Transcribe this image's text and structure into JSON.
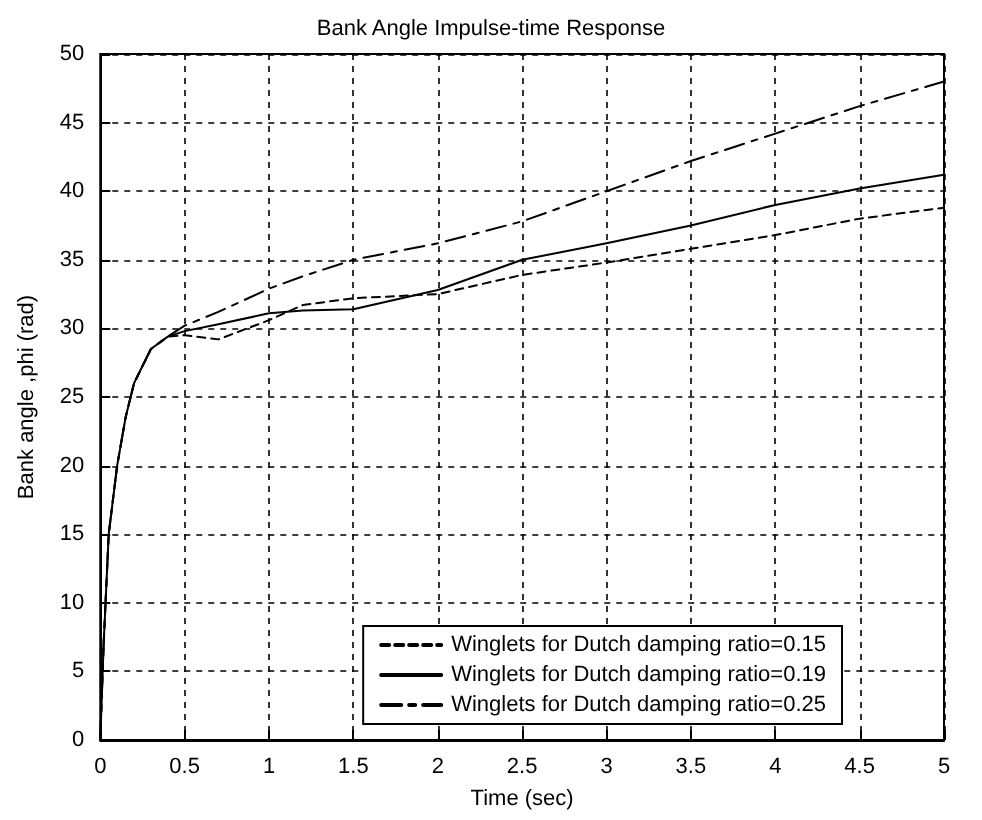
{
  "chart_data": {
    "type": "line",
    "title": "Bank Angle Impulse-time Response",
    "xlabel": "Time (sec)",
    "ylabel": "Bank angle ,phi (rad)",
    "x": [
      0,
      0.02,
      0.05,
      0.1,
      0.15,
      0.2,
      0.3,
      0.4,
      0.5,
      0.7,
      1.0,
      1.2,
      1.5,
      2.0,
      2.5,
      3.0,
      3.5,
      4.0,
      4.5,
      5.0
    ],
    "series": [
      {
        "name": "Winglets for Dutch damping ratio=0.15",
        "color": "#000000",
        "line_style": "dashed",
        "values": [
          0,
          7,
          15,
          20,
          23.5,
          26,
          28.5,
          29.4,
          29.5,
          29.2,
          30.6,
          31.7,
          32.2,
          32.5,
          33.9,
          34.8,
          35.8,
          36.8,
          38,
          38.8
        ]
      },
      {
        "name": "Winglets for Dutch damping ratio=0.19",
        "color": "#000000",
        "line_style": "solid",
        "values": [
          0,
          7,
          15,
          20,
          23.5,
          26,
          28.5,
          29.4,
          29.8,
          30.3,
          31.1,
          31.3,
          31.4,
          32.8,
          35,
          36.2,
          37.5,
          39,
          40.2,
          41.2
        ]
      },
      {
        "name": "Winglets for Dutch damping ratio=0.25",
        "color": "#000000",
        "line_style": "dashdot",
        "values": [
          0,
          7,
          15,
          20,
          23.5,
          26,
          28.5,
          29.4,
          30.2,
          31.2,
          32.9,
          33.8,
          35,
          36.2,
          37.8,
          40,
          42.2,
          44.2,
          46.2,
          48
        ]
      }
    ],
    "xlim": [
      0,
      5
    ],
    "xticks": [
      0,
      0.5,
      1,
      1.5,
      2,
      2.5,
      3,
      3.5,
      4,
      4.5,
      5
    ],
    "ylim": [
      0,
      50
    ],
    "yticks": [
      0,
      5,
      10,
      15,
      20,
      25,
      30,
      35,
      40,
      45,
      50
    ],
    "grid": true,
    "legend": "bottom right",
    "marker": "none"
  }
}
